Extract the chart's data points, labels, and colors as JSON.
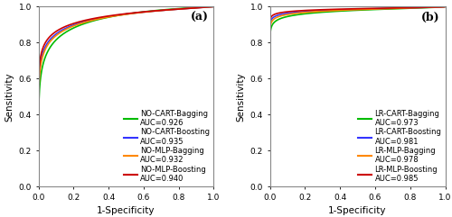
{
  "subplot_a": {
    "label": "(a)",
    "curves": [
      {
        "name": "NO-CART-Bagging",
        "auc": 0.926,
        "color": "#00bb00",
        "lw": 1.2,
        "steepness": 0.08
      },
      {
        "name": "NO-CART-Boosting",
        "auc": 0.935,
        "color": "#3333ff",
        "lw": 1.2,
        "steepness": 0.05
      },
      {
        "name": "NO-MLP-Bagging",
        "auc": 0.932,
        "color": "#ff8800",
        "lw": 1.2,
        "steepness": 0.055
      },
      {
        "name": "NO-MLP-Boosting",
        "auc": 0.94,
        "color": "#cc0000",
        "lw": 1.2,
        "steepness": 0.045
      }
    ]
  },
  "subplot_b": {
    "label": "(b)",
    "curves": [
      {
        "name": "LR-CART-Bagging",
        "auc": 0.973,
        "color": "#00bb00",
        "lw": 1.2,
        "steepness": 0.025
      },
      {
        "name": "LR-CART-Boosting",
        "auc": 0.981,
        "color": "#3333ff",
        "lw": 1.2,
        "steepness": 0.018
      },
      {
        "name": "LR-MLP-Bagging",
        "auc": 0.978,
        "color": "#ff8800",
        "lw": 1.2,
        "steepness": 0.02
      },
      {
        "name": "LR-MLP-Boosting",
        "auc": 0.985,
        "color": "#cc0000",
        "lw": 1.2,
        "steepness": 0.015
      }
    ]
  },
  "xlabel": "1-Specificity",
  "ylabel": "Sensitivity",
  "xlim": [
    0.0,
    1.0
  ],
  "ylim": [
    0.0,
    1.0
  ],
  "xticks": [
    0.0,
    0.2,
    0.4,
    0.6,
    0.8,
    1.0
  ],
  "yticks": [
    0.0,
    0.2,
    0.4,
    0.6,
    0.8,
    1.0
  ],
  "legend_fontsize": 6.0,
  "axis_fontsize": 7.5,
  "tick_fontsize": 6.5,
  "label_fontsize": 9,
  "spine_color": "#888888"
}
